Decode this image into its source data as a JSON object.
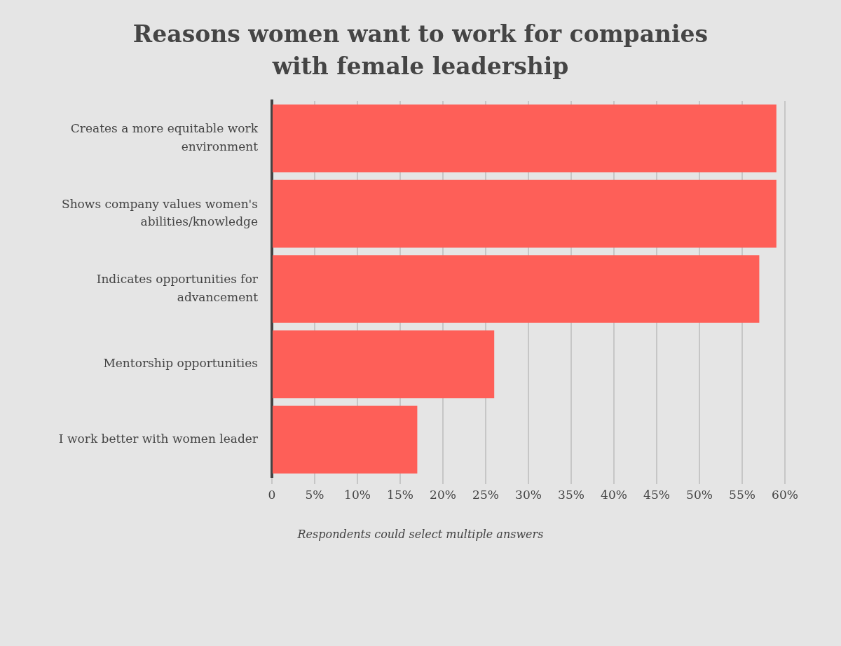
{
  "chart_data": {
    "type": "bar",
    "orientation": "horizontal",
    "title": "Reasons women want to work for companies with female leadership",
    "categories": [
      "Creates a more equitable work environment",
      "Shows company values women's abilities/knowledge",
      "Indicates opportunities for advancement",
      "Mentorship opportunities",
      "I work better with women leader"
    ],
    "values": [
      59,
      59,
      57,
      26,
      17
    ],
    "color": "#fe5f58",
    "xlim": [
      0,
      60
    ],
    "xticks": [
      0,
      {
        "value": 5,
        "label": "5%"
      },
      {
        "value": 10,
        "label": "10%"
      },
      {
        "value": 15,
        "label": "15%"
      },
      {
        "value": 20,
        "label": "20%"
      },
      {
        "value": 25,
        "label": "25%"
      },
      {
        "value": 30,
        "label": "30%"
      },
      {
        "value": 35,
        "label": "35%"
      },
      {
        "value": 40,
        "label": "40%"
      },
      {
        "value": 45,
        "label": "45%"
      },
      {
        "value": 50,
        "label": "50%"
      },
      {
        "value": 55,
        "label": "55%"
      },
      {
        "value": 60,
        "label": "60%"
      }
    ],
    "grid": "x",
    "annotations": [
      "Respondents could select multiple answers"
    ]
  }
}
